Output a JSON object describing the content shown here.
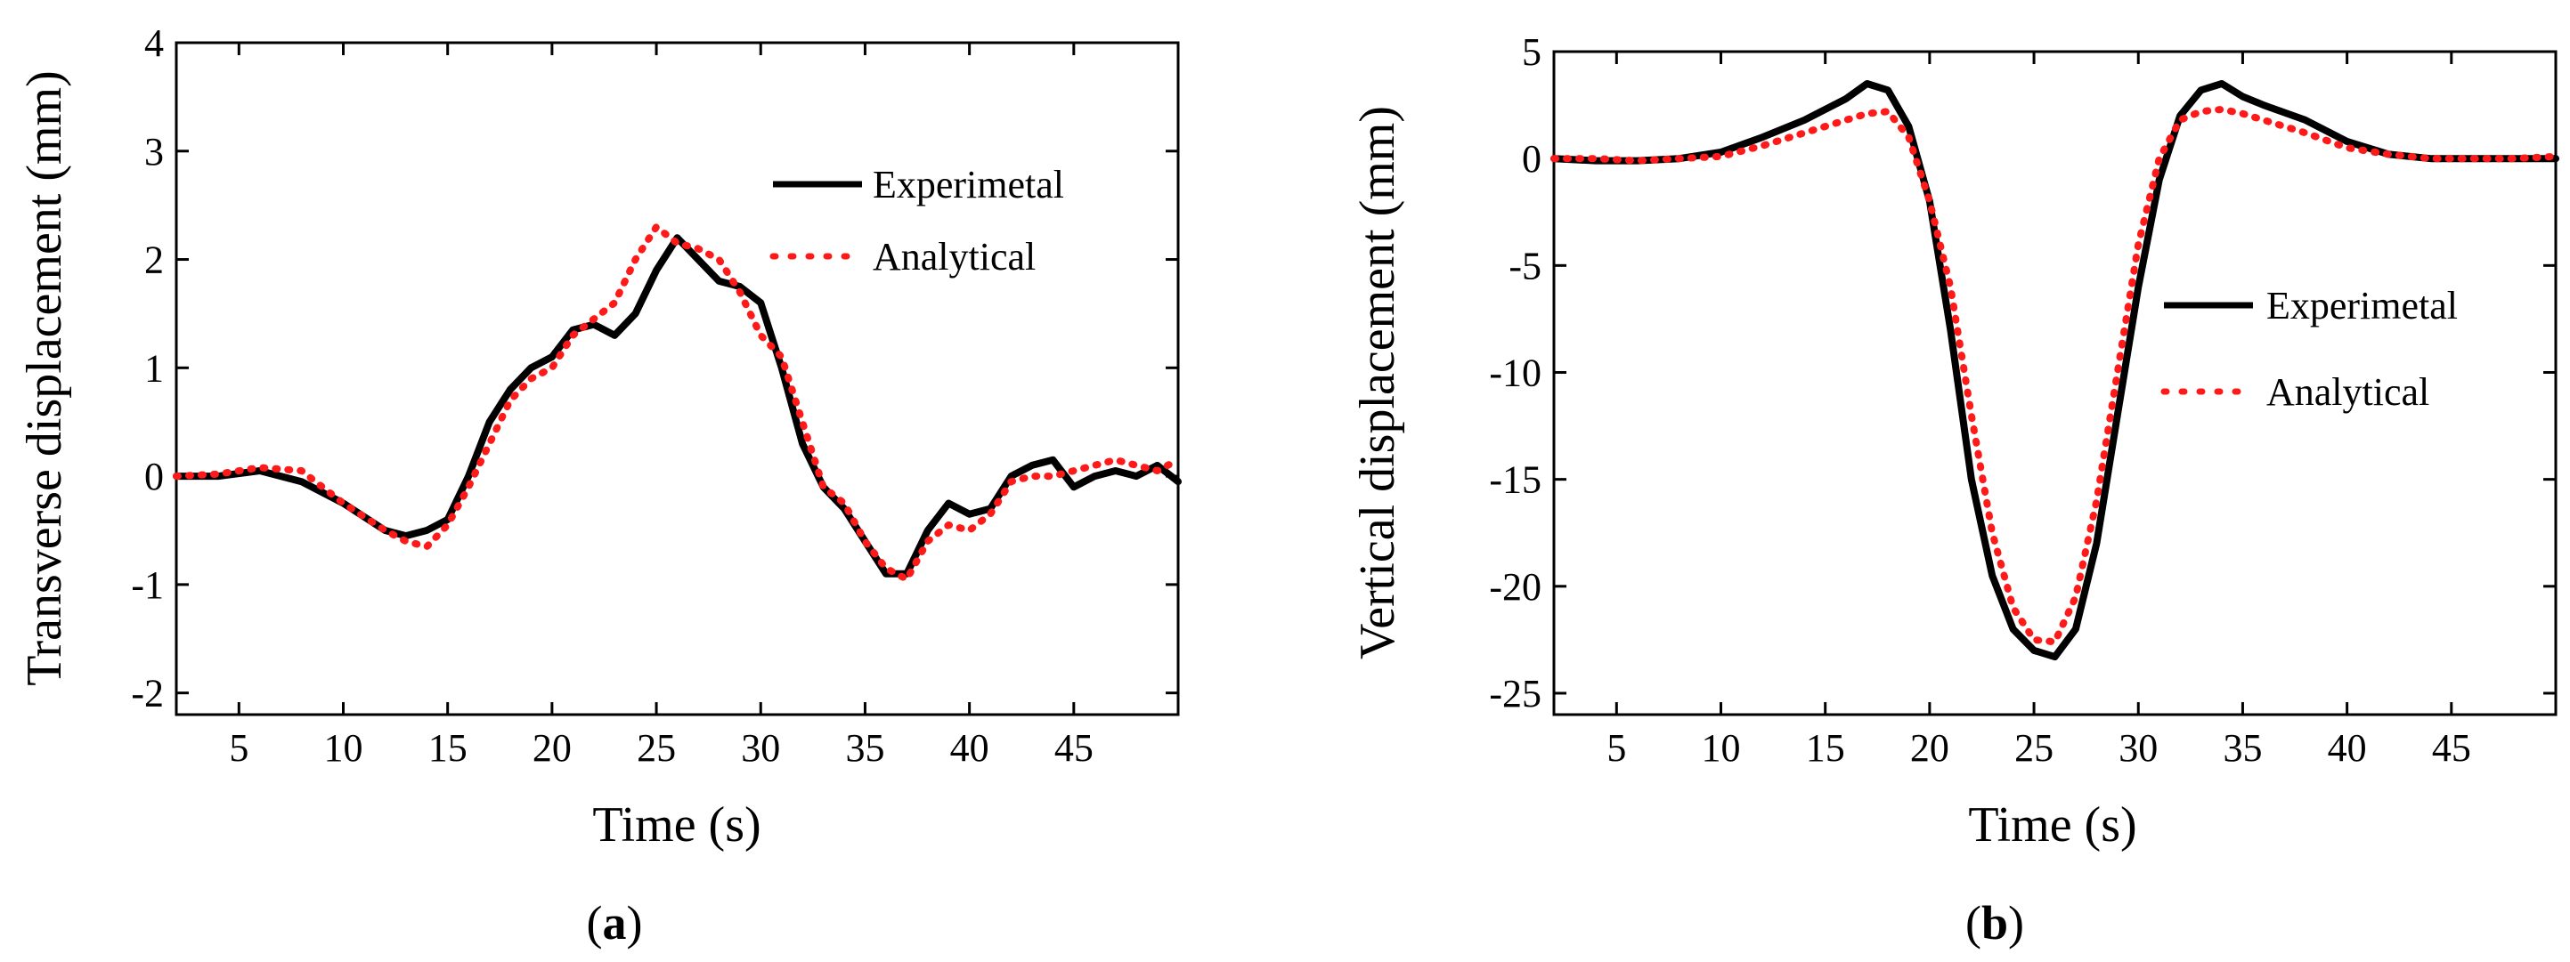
{
  "chart_data": [
    {
      "type": "line",
      "caption": "(a)",
      "caption_letter": "a",
      "title": "",
      "xlabel": "Time (s)",
      "ylabel": "Transverse displacement (mm)",
      "xlim": [
        2,
        50
      ],
      "ylim": [
        -2.2,
        4
      ],
      "xticks": [
        5,
        10,
        15,
        20,
        25,
        30,
        35,
        40,
        45
      ],
      "yticks": [
        -2,
        -1,
        0,
        1,
        2,
        3,
        4
      ],
      "legend_position": "top-right",
      "series": [
        {
          "name": "Experimetal",
          "color": "#000000",
          "style": "solid",
          "x": [
            2,
            4,
            6,
            8,
            10,
            12,
            13,
            14,
            15,
            16,
            17,
            18,
            19,
            20,
            21,
            22,
            23,
            24,
            25,
            26,
            27,
            28,
            29,
            30,
            31,
            32,
            33,
            34,
            35,
            36,
            37,
            38,
            39,
            40,
            41,
            42,
            43,
            44,
            45,
            46,
            47,
            48,
            49,
            50
          ],
          "y": [
            0,
            0,
            0.05,
            -0.05,
            -0.25,
            -0.5,
            -0.55,
            -0.5,
            -0.4,
            0,
            0.5,
            0.8,
            1.0,
            1.1,
            1.35,
            1.4,
            1.3,
            1.5,
            1.9,
            2.2,
            2.0,
            1.8,
            1.75,
            1.6,
            1.0,
            0.3,
            -0.1,
            -0.3,
            -0.6,
            -0.9,
            -0.9,
            -0.5,
            -0.25,
            -0.35,
            -0.3,
            0,
            0.1,
            0.15,
            -0.1,
            0,
            0.05,
            0,
            0.1,
            -0.05
          ]
        },
        {
          "name": "Analytical",
          "color": "#ff1a1a",
          "style": "dotted",
          "x": [
            2,
            4,
            6,
            8,
            10,
            12,
            13,
            14,
            15,
            16,
            17,
            18,
            19,
            20,
            21,
            22,
            23,
            24,
            25,
            26,
            27,
            28,
            29,
            30,
            31,
            32,
            33,
            34,
            35,
            36,
            37,
            38,
            39,
            40,
            41,
            42,
            43,
            44,
            45,
            46,
            47,
            48,
            49,
            50
          ],
          "y": [
            0,
            0.02,
            0.08,
            0.05,
            -0.25,
            -0.5,
            -0.6,
            -0.65,
            -0.45,
            -0.1,
            0.3,
            0.7,
            0.9,
            1.0,
            1.3,
            1.45,
            1.6,
            2.0,
            2.3,
            2.15,
            2.1,
            2.0,
            1.7,
            1.3,
            1.1,
            0.5,
            -0.1,
            -0.25,
            -0.6,
            -0.85,
            -0.95,
            -0.6,
            -0.45,
            -0.5,
            -0.35,
            -0.05,
            0,
            0,
            0.05,
            0.1,
            0.15,
            0.1,
            0.05,
            0.15
          ]
        }
      ]
    },
    {
      "type": "line",
      "caption": "(b)",
      "caption_letter": "b",
      "title": "",
      "xlabel": "Time (s)",
      "ylabel": "Vertical displacement (mm)",
      "xlim": [
        2,
        50
      ],
      "ylim": [
        -26,
        5
      ],
      "xticks": [
        5,
        10,
        15,
        20,
        25,
        30,
        35,
        40,
        45
      ],
      "yticks": [
        -25,
        -20,
        -15,
        -10,
        -5,
        0,
        5
      ],
      "legend_position": "center-right",
      "series": [
        {
          "name": "Experimetal",
          "color": "#000000",
          "style": "solid",
          "x": [
            2,
            4,
            6,
            8,
            10,
            12,
            14,
            16,
            17,
            18,
            19,
            20,
            21,
            22,
            23,
            24,
            25,
            26,
            27,
            28,
            29,
            30,
            31,
            32,
            33,
            34,
            35,
            36,
            38,
            40,
            42,
            44,
            46,
            48,
            50
          ],
          "y": [
            0,
            -0.1,
            -0.1,
            0,
            0.3,
            1.0,
            1.8,
            2.8,
            3.5,
            3.2,
            1.5,
            -2,
            -8,
            -15,
            -19.5,
            -22,
            -23,
            -23.3,
            -22,
            -18,
            -12,
            -6,
            -1,
            2,
            3.2,
            3.5,
            2.9,
            2.5,
            1.8,
            0.8,
            0.2,
            0,
            0,
            0,
            0
          ]
        },
        {
          "name": "Analytical",
          "color": "#ff1a1a",
          "style": "dotted",
          "x": [
            2,
            4,
            6,
            8,
            10,
            12,
            14,
            16,
            17,
            18,
            19,
            20,
            21,
            22,
            23,
            24,
            25,
            26,
            27,
            28,
            29,
            30,
            31,
            32,
            33,
            34,
            35,
            36,
            38,
            40,
            42,
            44,
            46,
            48,
            50
          ],
          "y": [
            0,
            0,
            -0.1,
            0,
            0.1,
            0.6,
            1.2,
            1.8,
            2.1,
            2.2,
            1.0,
            -2,
            -6,
            -12,
            -17.5,
            -21,
            -22.5,
            -22.6,
            -20.5,
            -16,
            -10,
            -4,
            0,
            1.8,
            2.2,
            2.3,
            2.1,
            1.8,
            1.2,
            0.5,
            0.2,
            0,
            0,
            0,
            0.1
          ]
        }
      ]
    }
  ]
}
